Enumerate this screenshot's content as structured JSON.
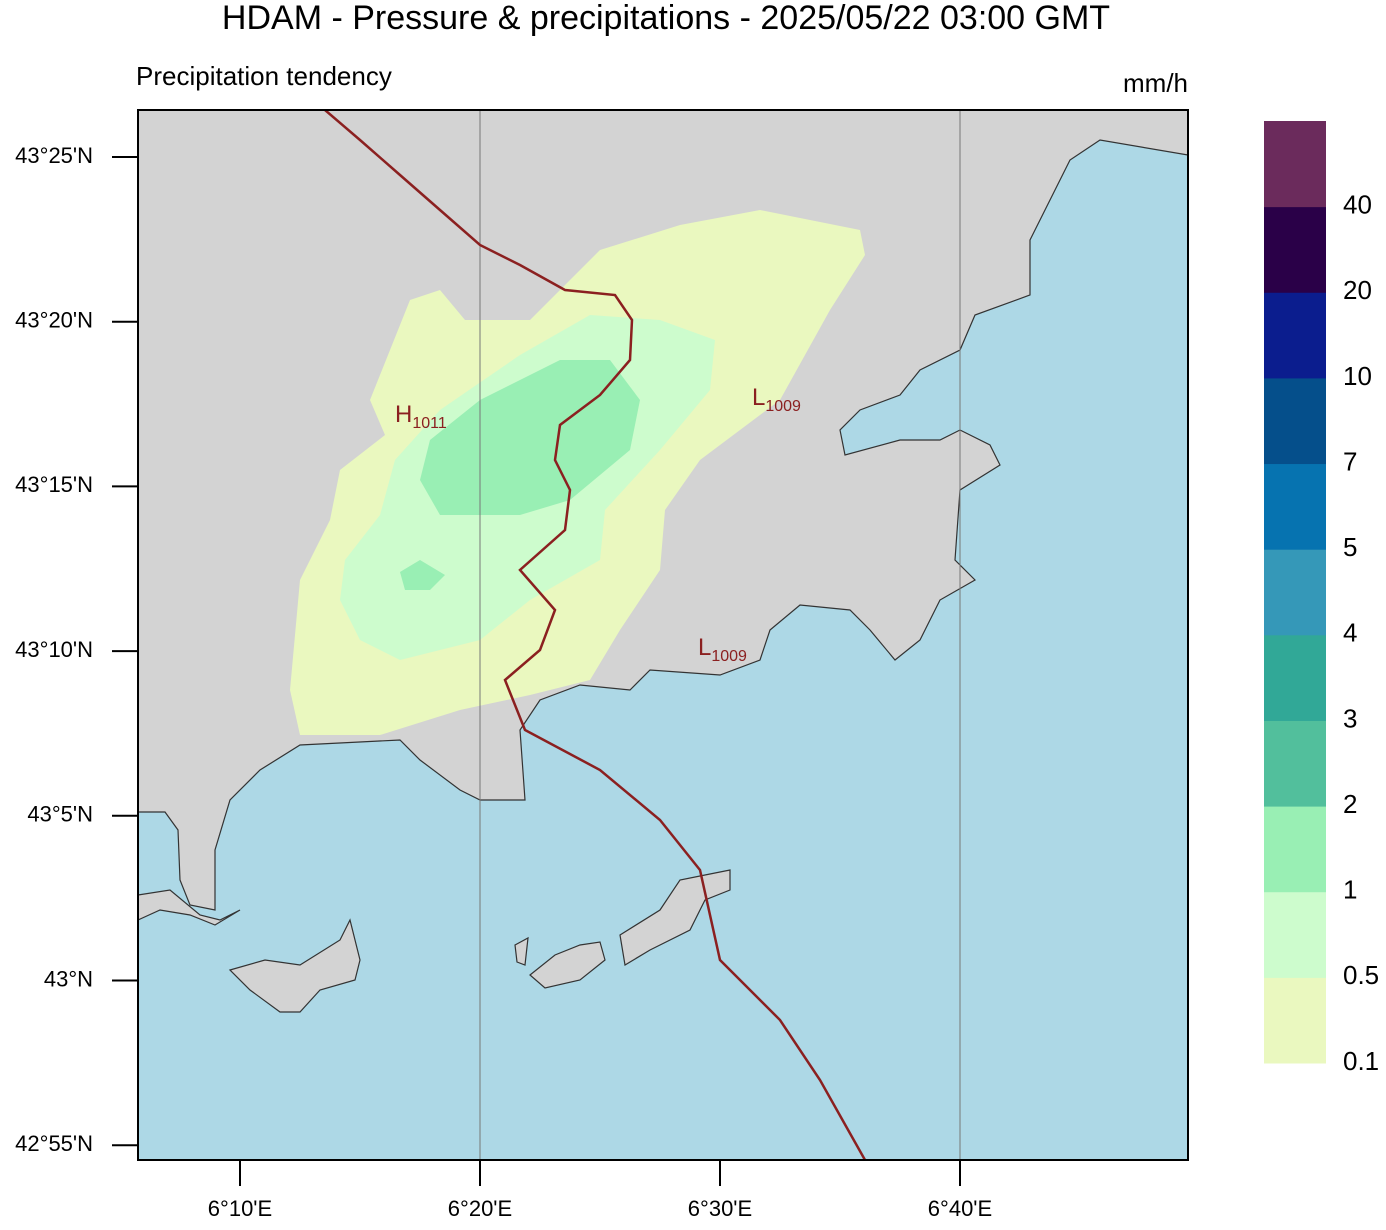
{
  "header": {
    "title": "HDAM - Pressure & precipitations  -  2025/05/22  03:00 GMT",
    "subtitle": "Precipitation tendency",
    "units": "mm/h"
  },
  "map": {
    "lat_labels": [
      "43°25'N",
      "43°20'N",
      "43°15'N",
      "43°10'N",
      "43°5'N",
      "43°N",
      "42°55'N"
    ],
    "lon_labels": [
      "6°10'E",
      "6°20'E",
      "6°30'E",
      "6°40'E"
    ]
  },
  "pressure_labels": [
    {
      "letter": "H",
      "value": "1011"
    },
    {
      "letter": "L",
      "value": "1009"
    },
    {
      "letter": "L",
      "value": "1009"
    }
  ],
  "colorbar": {
    "labels": [
      "0.1",
      "0.5",
      "1",
      "2",
      "3",
      "4",
      "5",
      "7",
      "10",
      "20",
      "40"
    ],
    "colors": [
      "#eaf8bf",
      "#cdfccd",
      "#99efb4",
      "#52bf9c",
      "#31a897",
      "#3598b8",
      "#0673b0",
      "#054f8b",
      "#0b1d8e",
      "#2a0048",
      "#6b2b5c"
    ]
  }
}
